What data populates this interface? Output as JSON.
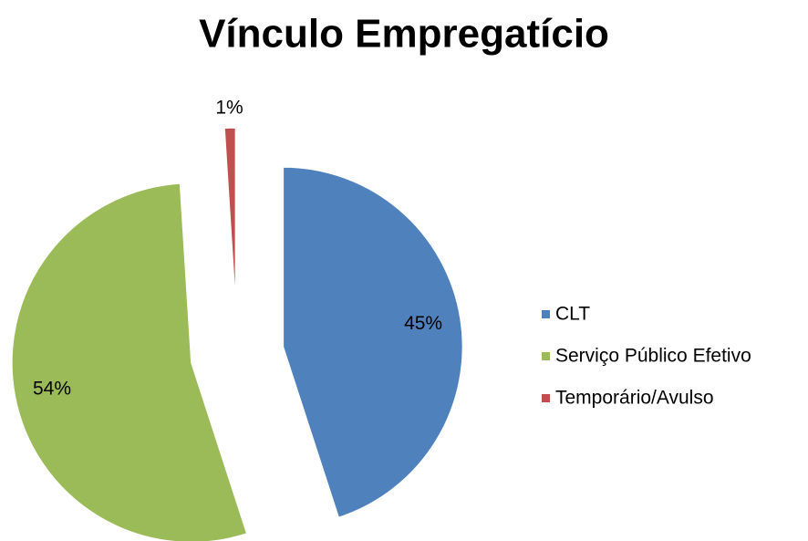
{
  "chart_data": {
    "type": "pie",
    "title": "Vínculo Empregatício",
    "categories": [
      "CLT",
      "Serviço Público Efetivo",
      "Temporário/Avulso"
    ],
    "values": [
      45,
      54,
      1
    ],
    "value_labels": [
      "45%",
      "54%",
      "1%"
    ],
    "colors": [
      "#4f81bd",
      "#9bbb59",
      "#c0504d"
    ],
    "legend": "right"
  }
}
